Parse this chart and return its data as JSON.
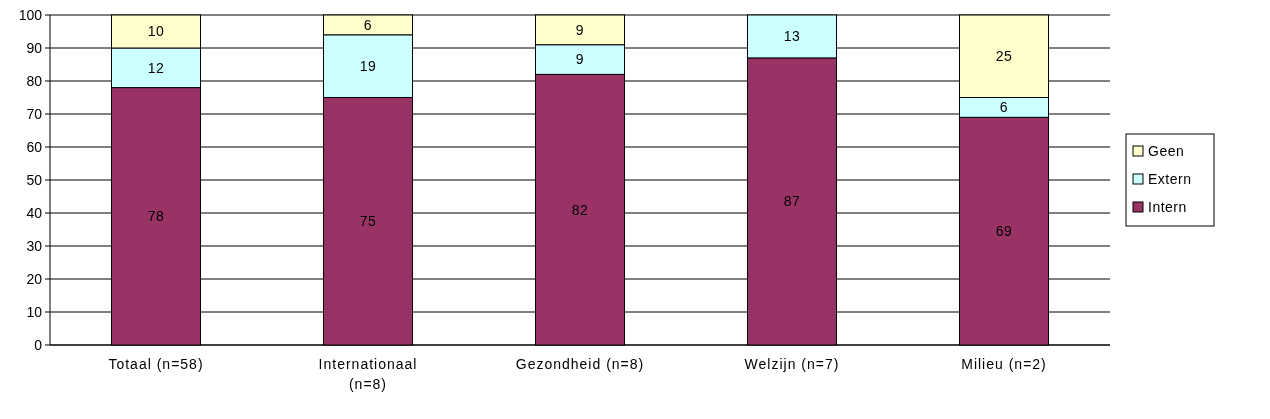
{
  "chart_data": {
    "type": "bar",
    "stacked": true,
    "categories": [
      "Totaal (n=58)",
      "Internationaal (n=8)",
      "Gezondheid (n=8)",
      "Welzijn (n=7)",
      "Milieu (n=2)"
    ],
    "series": [
      {
        "name": "Intern",
        "color": "#993366",
        "values": [
          78,
          75,
          82,
          87,
          69
        ]
      },
      {
        "name": "Extern",
        "color": "#ccffff",
        "values": [
          12,
          19,
          9,
          13,
          6
        ]
      },
      {
        "name": "Geen",
        "color": "#ffffcc",
        "values": [
          10,
          6,
          9,
          null,
          25
        ]
      }
    ],
    "ylim": [
      0,
      100
    ],
    "yticks": [
      0,
      10,
      20,
      30,
      40,
      50,
      60,
      70,
      80,
      90,
      100
    ],
    "grid": "y",
    "legend": "right",
    "data_labels": true
  }
}
